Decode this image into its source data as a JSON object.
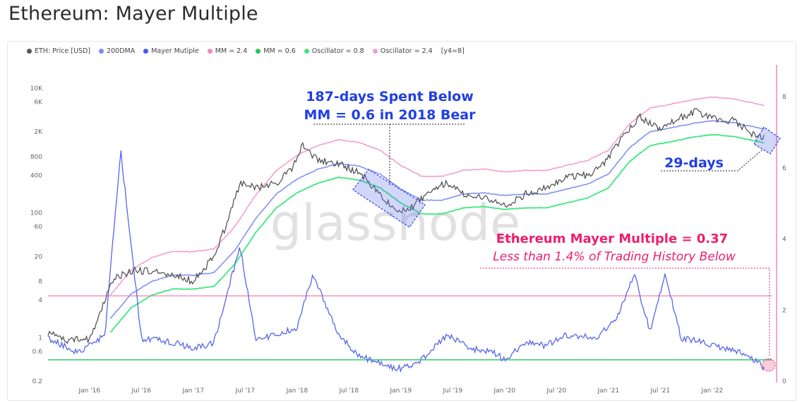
{
  "page": {
    "title": "Ethereum: Mayer Multiple"
  },
  "legend": [
    {
      "label": "ETH: Price [USD]",
      "color": "#555555"
    },
    {
      "label": "200DMA",
      "color": "#7c8cf5"
    },
    {
      "label": "Mayer Mutiple",
      "color": "#4a5ae8"
    },
    {
      "label": "MM = 2.4",
      "color": "#f28ab8"
    },
    {
      "label": "MM = 0.6",
      "color": "#22c55e"
    },
    {
      "label": "Oscillator = 0.8",
      "color": "#4ade80"
    },
    {
      "label": "Oscillator = 2.4",
      "color": "#f0a0d8"
    },
    {
      "label": "[y4=8]",
      "color": ""
    }
  ],
  "watermark": "glassnode",
  "annotations": {
    "bear_line1": "187-days Spent Below",
    "bear_line2": "MM = 0.6 in 2018 Bear",
    "recent": "29-days",
    "mm_value": "Ethereum Mayer Multiple = 0.37",
    "mm_sub": "Less than 1.4% of Trading History Below"
  },
  "chart_data": {
    "type": "line",
    "x_ticks": [
      "Jan '16",
      "Jul '16",
      "Jan '17",
      "Jul '17",
      "Jan '18",
      "Jul '18",
      "Jan '19",
      "Jul '19",
      "Jan '20",
      "Jul '20",
      "Jan '21",
      "Jul '21",
      "Jan '22"
    ],
    "y_left_ticks": [
      "10K",
      "6K",
      "2K",
      "800",
      "400",
      "100",
      "60",
      "20",
      "8",
      "4",
      "1",
      "0.6",
      "0.2"
    ],
    "y_left_scale": "log",
    "y_left_range": [
      0.2,
      14000
    ],
    "y_right_ticks": [
      "8",
      "6",
      "4",
      "2",
      "0"
    ],
    "y_right_range": [
      0,
      8.5
    ],
    "grid": false,
    "series": [
      {
        "name": "ETH: Price [USD]",
        "axis": "left",
        "x": [
          2015.6,
          2015.8,
          2016.0,
          2016.15,
          2016.2,
          2016.3,
          2016.45,
          2016.7,
          2016.9,
          2017.0,
          2017.2,
          2017.35,
          2017.45,
          2017.6,
          2017.8,
          2017.95,
          2018.05,
          2018.2,
          2018.4,
          2018.6,
          2018.8,
          2018.95,
          2019.1,
          2019.3,
          2019.45,
          2019.6,
          2019.8,
          2020.0,
          2020.2,
          2020.35,
          2020.6,
          2020.8,
          2021.0,
          2021.15,
          2021.3,
          2021.5,
          2021.7,
          2021.85,
          2022.0,
          2022.2,
          2022.4,
          2022.5
        ],
        "y": [
          1.2,
          0.9,
          0.95,
          4,
          8,
          10,
          12,
          11,
          9,
          8,
          20,
          90,
          300,
          250,
          300,
          500,
          1200,
          700,
          600,
          450,
          200,
          110,
          120,
          250,
          300,
          200,
          180,
          130,
          200,
          240,
          380,
          400,
          740,
          1800,
          3500,
          2200,
          3400,
          4300,
          3200,
          3000,
          1800,
          1600
        ]
      },
      {
        "name": "200DMA",
        "axis": "left",
        "x": [
          2016.2,
          2016.4,
          2016.6,
          2016.8,
          2017.0,
          2017.2,
          2017.4,
          2017.6,
          2017.8,
          2018.0,
          2018.2,
          2018.4,
          2018.6,
          2018.8,
          2019.0,
          2019.2,
          2019.4,
          2019.6,
          2019.8,
          2020.0,
          2020.2,
          2020.4,
          2020.6,
          2020.8,
          2021.0,
          2021.2,
          2021.4,
          2021.6,
          2021.8,
          2022.0,
          2022.2,
          2022.4,
          2022.5
        ],
        "y": [
          2,
          5,
          8,
          10,
          10,
          11,
          25,
          80,
          200,
          350,
          500,
          620,
          560,
          420,
          240,
          160,
          160,
          200,
          210,
          190,
          200,
          200,
          240,
          290,
          420,
          1100,
          2000,
          2300,
          2700,
          3000,
          2800,
          2400,
          2200
        ]
      },
      {
        "name": "Mayer Mutiple",
        "axis": "right",
        "x": [
          2015.6,
          2015.9,
          2016.15,
          2016.3,
          2016.5,
          2016.8,
          2017.0,
          2017.2,
          2017.45,
          2017.6,
          2017.8,
          2018.0,
          2018.15,
          2018.4,
          2018.6,
          2018.9,
          2019.0,
          2019.2,
          2019.45,
          2019.7,
          2019.9,
          2020.0,
          2020.2,
          2020.4,
          2020.6,
          2020.9,
          2021.1,
          2021.25,
          2021.4,
          2021.55,
          2021.7,
          2021.9,
          2022.1,
          2022.3,
          2022.45,
          2022.5
        ],
        "y": [
          1.2,
          0.8,
          1.3,
          6.5,
          1.2,
          1.1,
          0.9,
          1.1,
          3.8,
          1.2,
          1.3,
          1.5,
          3.0,
          1.3,
          0.7,
          0.4,
          0.35,
          0.6,
          1.3,
          0.9,
          0.8,
          0.6,
          1.1,
          1.0,
          1.3,
          1.2,
          1.9,
          3.0,
          1.4,
          3.0,
          1.2,
          1.1,
          0.9,
          0.8,
          0.5,
          0.37
        ]
      },
      {
        "name": "MM = 2.4",
        "axis": "right",
        "x": [
          2015.6,
          2022.5
        ],
        "y": [
          2.4,
          2.4
        ]
      },
      {
        "name": "MM = 0.6",
        "axis": "right",
        "x": [
          2015.6,
          2022.5
        ],
        "y": [
          0.6,
          0.6
        ]
      }
    ]
  }
}
